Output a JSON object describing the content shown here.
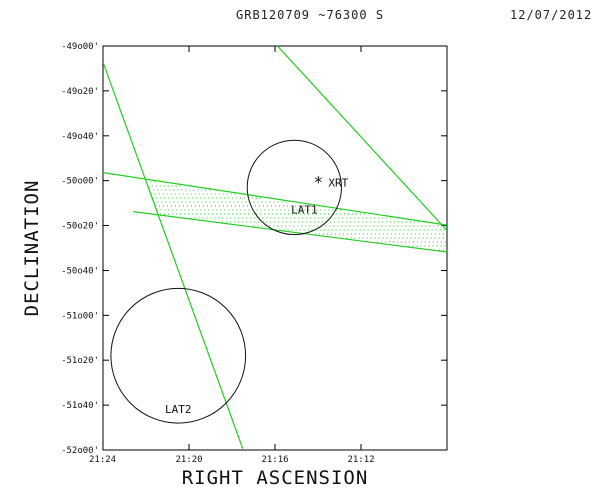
{
  "header": {
    "title": "GRB120709 ~76300 S",
    "date": "12/07/2012"
  },
  "chart_data": {
    "type": "scatter",
    "xlabel": "RIGHT ASCENSION",
    "ylabel": "DECLINATION",
    "xlim_min": [
      1284,
      1268
    ],
    "ylim_deg": [
      -52.0,
      -49.0
    ],
    "x_ticks": [
      "21:24",
      "21:20",
      "21:16",
      "21:12"
    ],
    "x_tick_min": [
      1284,
      1280,
      1276,
      1272
    ],
    "y_ticks": [
      "-49o00'",
      "-49o20'",
      "-49o40'",
      "-50o00'",
      "-50o20'",
      "-50o40'",
      "-51o00'",
      "-51o20'",
      "-51o40'",
      "-52o00'"
    ],
    "y_tick_deg": [
      -49.0,
      -49.333,
      -49.667,
      -50.0,
      -50.333,
      -50.667,
      -51.0,
      -51.333,
      -51.667,
      -52.0
    ],
    "line_color": "#22cc22",
    "circle_color": "#111111",
    "circles": [
      {
        "label": "LAT1",
        "ra_min": 1275.1,
        "dec_deg": -50.05,
        "radius_deg": 0.35
      },
      {
        "label": "LAT2",
        "ra_min": 1280.5,
        "dec_deg": -51.3,
        "radius_deg": 0.5
      }
    ],
    "marker": {
      "label": "XRT",
      "symbol": "*",
      "ra_min": 1273.8,
      "dec_deg": -49.99
    },
    "bands": [
      {
        "name": "band1-a",
        "points": [
          [
            1284,
            -49.94
          ],
          [
            1268,
            -50.33
          ]
        ]
      },
      {
        "name": "band1-b",
        "points": [
          [
            1282.6,
            -50.23
          ],
          [
            1268,
            -50.53
          ]
        ]
      },
      {
        "name": "band2-a",
        "points": [
          [
            1284,
            -49.12
          ],
          [
            1277.5,
            -51.99
          ]
        ]
      },
      {
        "name": "band2-b",
        "points": [
          [
            1276.0,
            -48.98
          ],
          [
            1268,
            -50.37
          ]
        ]
      }
    ]
  }
}
